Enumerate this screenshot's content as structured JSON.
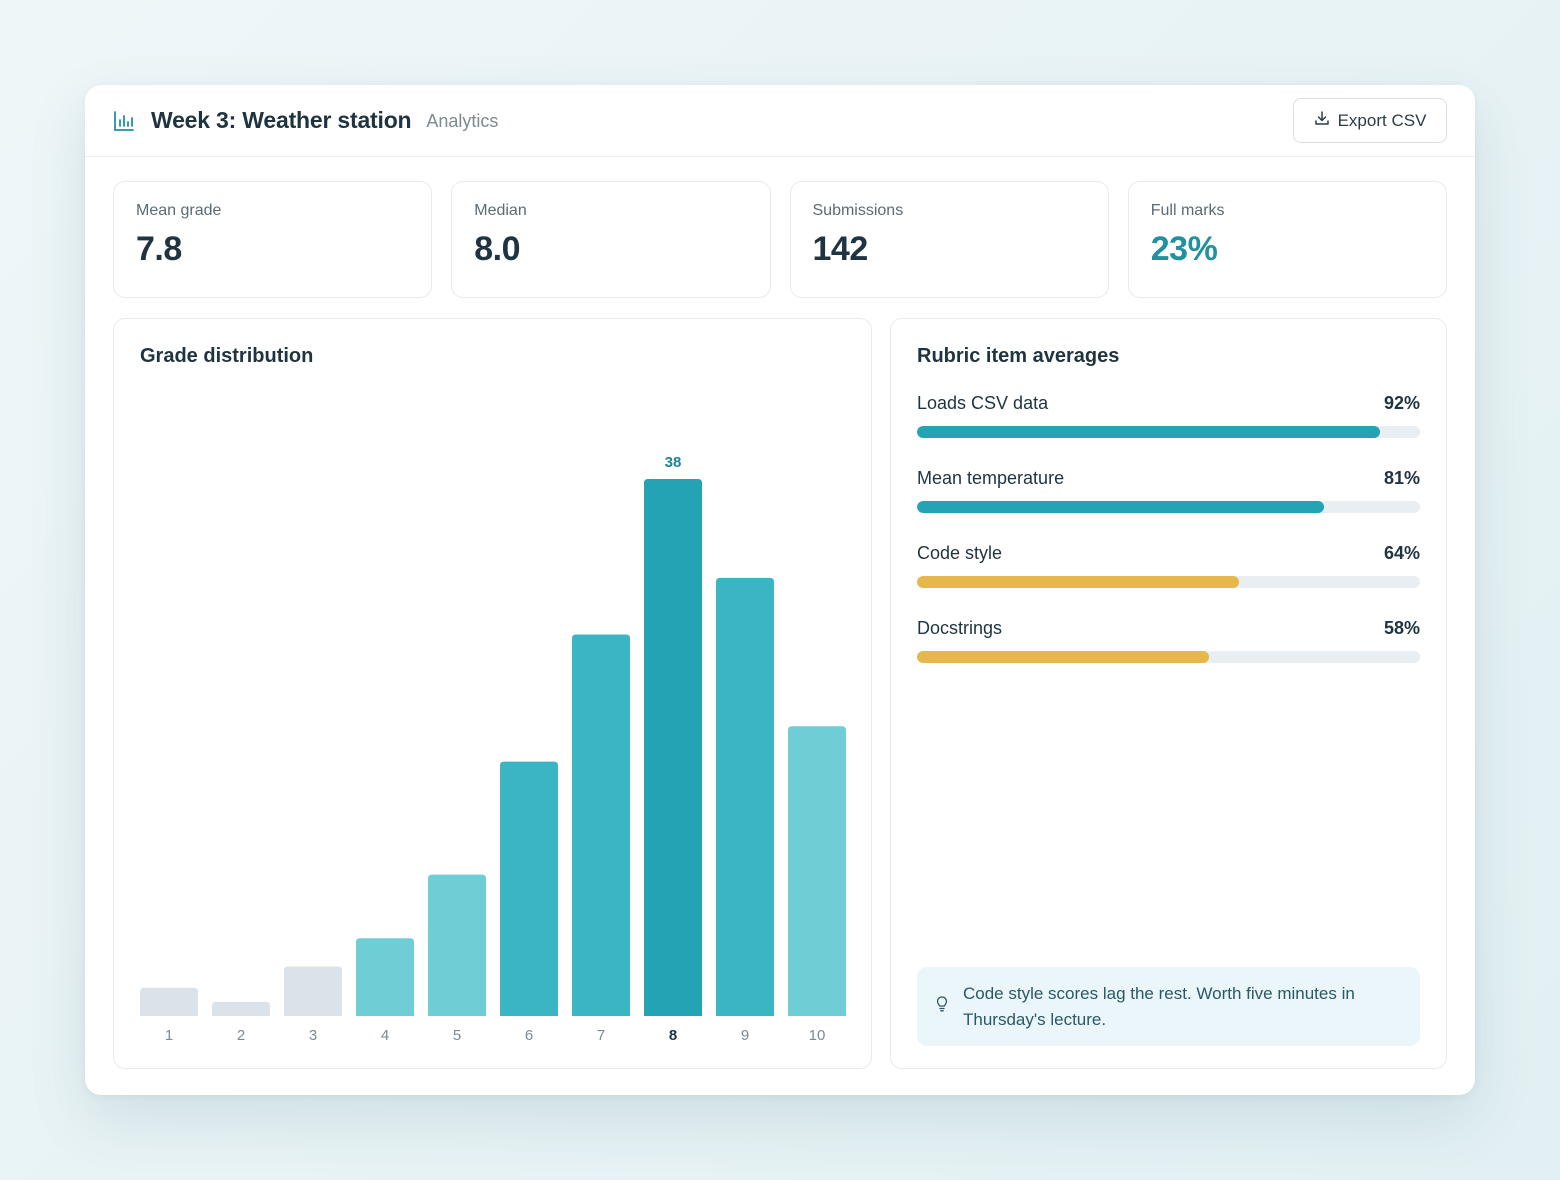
{
  "header": {
    "title": "Week 3: Weather station",
    "subtitle": "Analytics",
    "export_label": "Export CSV"
  },
  "stats": [
    {
      "label": "Mean grade",
      "value": "7.8"
    },
    {
      "label": "Median",
      "value": "8.0"
    },
    {
      "label": "Submissions",
      "value": "142"
    },
    {
      "label": "Full marks",
      "value": "23%"
    }
  ],
  "distribution": {
    "title": "Grade distribution"
  },
  "chart_data": {
    "type": "bar",
    "categories": [
      "1",
      "2",
      "3",
      "4",
      "5",
      "6",
      "7",
      "8",
      "9",
      "10"
    ],
    "values": [
      2,
      1,
      3.5,
      5.5,
      10,
      18,
      27,
      38,
      31,
      20.5
    ],
    "highlight_index": 7,
    "highlight_label": "38",
    "title": "Grade distribution",
    "xlabel": "",
    "ylabel": "",
    "ylim": [
      0,
      38
    ],
    "grid": false,
    "colors": {
      "low": "#d9e3e9",
      "mid": "#6fcdd6",
      "high": "#3bb4c3",
      "peak": "#23a3b3"
    }
  },
  "rubric": {
    "title": "Rubric item averages",
    "items": [
      {
        "label": "Loads CSV data",
        "pct_text": "92%",
        "value": 0.92,
        "color": "#23a3b3"
      },
      {
        "label": "Mean temperature",
        "pct_text": "81%",
        "value": 0.81,
        "color": "#23a3b3"
      },
      {
        "label": "Code style",
        "pct_text": "64%",
        "value": 0.64,
        "color": "#e6b84c"
      },
      {
        "label": "Docstrings",
        "pct_text": "58%",
        "value": 0.58,
        "color": "#e6b84c"
      }
    ],
    "tip": "Code style scores lag the rest. Worth five minutes in Thursday's lecture."
  }
}
